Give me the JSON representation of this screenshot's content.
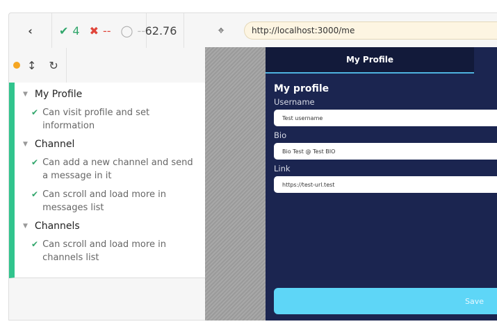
{
  "toolbar": {
    "passed": "4",
    "failed": "--",
    "pending": "--",
    "duration": "62.76",
    "url": "http://localhost:3000/me"
  },
  "suites": [
    {
      "title": "My Profile",
      "tests": [
        "Can visit profile and set information"
      ]
    },
    {
      "title": "Channel",
      "tests": [
        "Can add a new channel and send a message in it",
        "Can scroll and load more in messages list"
      ]
    },
    {
      "title": "Channels",
      "tests": [
        "Can scroll and load more in channels list"
      ]
    }
  ],
  "app": {
    "tab": "My Profile",
    "heading": "My profile",
    "username_label": "Username",
    "username": "Test username",
    "bio_label": "Bio",
    "bio": "Bio Test @ Test BIO",
    "link_label": "Link",
    "link": "https://test-url.test",
    "save": "Save"
  },
  "colors": {
    "pass": "#31a66b",
    "fail": "#e0453a",
    "app_bg": "#1b2550",
    "save": "#5ed6f7"
  }
}
